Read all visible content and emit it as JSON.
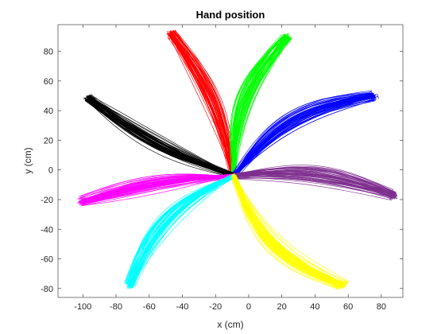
{
  "chart_data": {
    "type": "line",
    "title": "Hand position",
    "xlabel": "x (cm)",
    "ylabel": "y (cm)",
    "xlim": [
      -115,
      93
    ],
    "ylim": [
      -86,
      98
    ],
    "xticks": [
      -100,
      -80,
      -60,
      -40,
      -20,
      0,
      20,
      40,
      60,
      80
    ],
    "yticks": [
      -80,
      -60,
      -40,
      -20,
      0,
      20,
      40,
      60,
      80
    ],
    "grid": false,
    "legend": "none",
    "series": [
      {
        "color": "#ff0000",
        "target": [
          -47,
          92
        ],
        "curvature": -0.06,
        "spread": 3.4
      },
      {
        "color": "#00ff00",
        "target": [
          23,
          90
        ],
        "curvature": 0.1,
        "spread": 3.6
      },
      {
        "color": "#0000ff",
        "target": [
          75,
          50
        ],
        "curvature": 0.12,
        "spread": 3.6
      },
      {
        "color": "#000000",
        "target": [
          -97,
          48
        ],
        "curvature": 0.05,
        "spread": 3.6
      },
      {
        "color": "#7e2f8e",
        "target": [
          88,
          -17
        ],
        "curvature": 0.07,
        "spread": 3.6
      },
      {
        "color": "#ff00ff",
        "target": [
          -101,
          -21
        ],
        "curvature": -0.04,
        "spread": 3.4
      },
      {
        "color": "#00ffff",
        "target": [
          -72,
          -78
        ],
        "curvature": -0.12,
        "spread": 3.8
      },
      {
        "color": "#ffff00",
        "target": [
          57,
          -78
        ],
        "curvature": -0.13,
        "spread": 4.2
      }
    ],
    "origin": [
      -9,
      -4
    ],
    "trials_per_target": 55
  }
}
